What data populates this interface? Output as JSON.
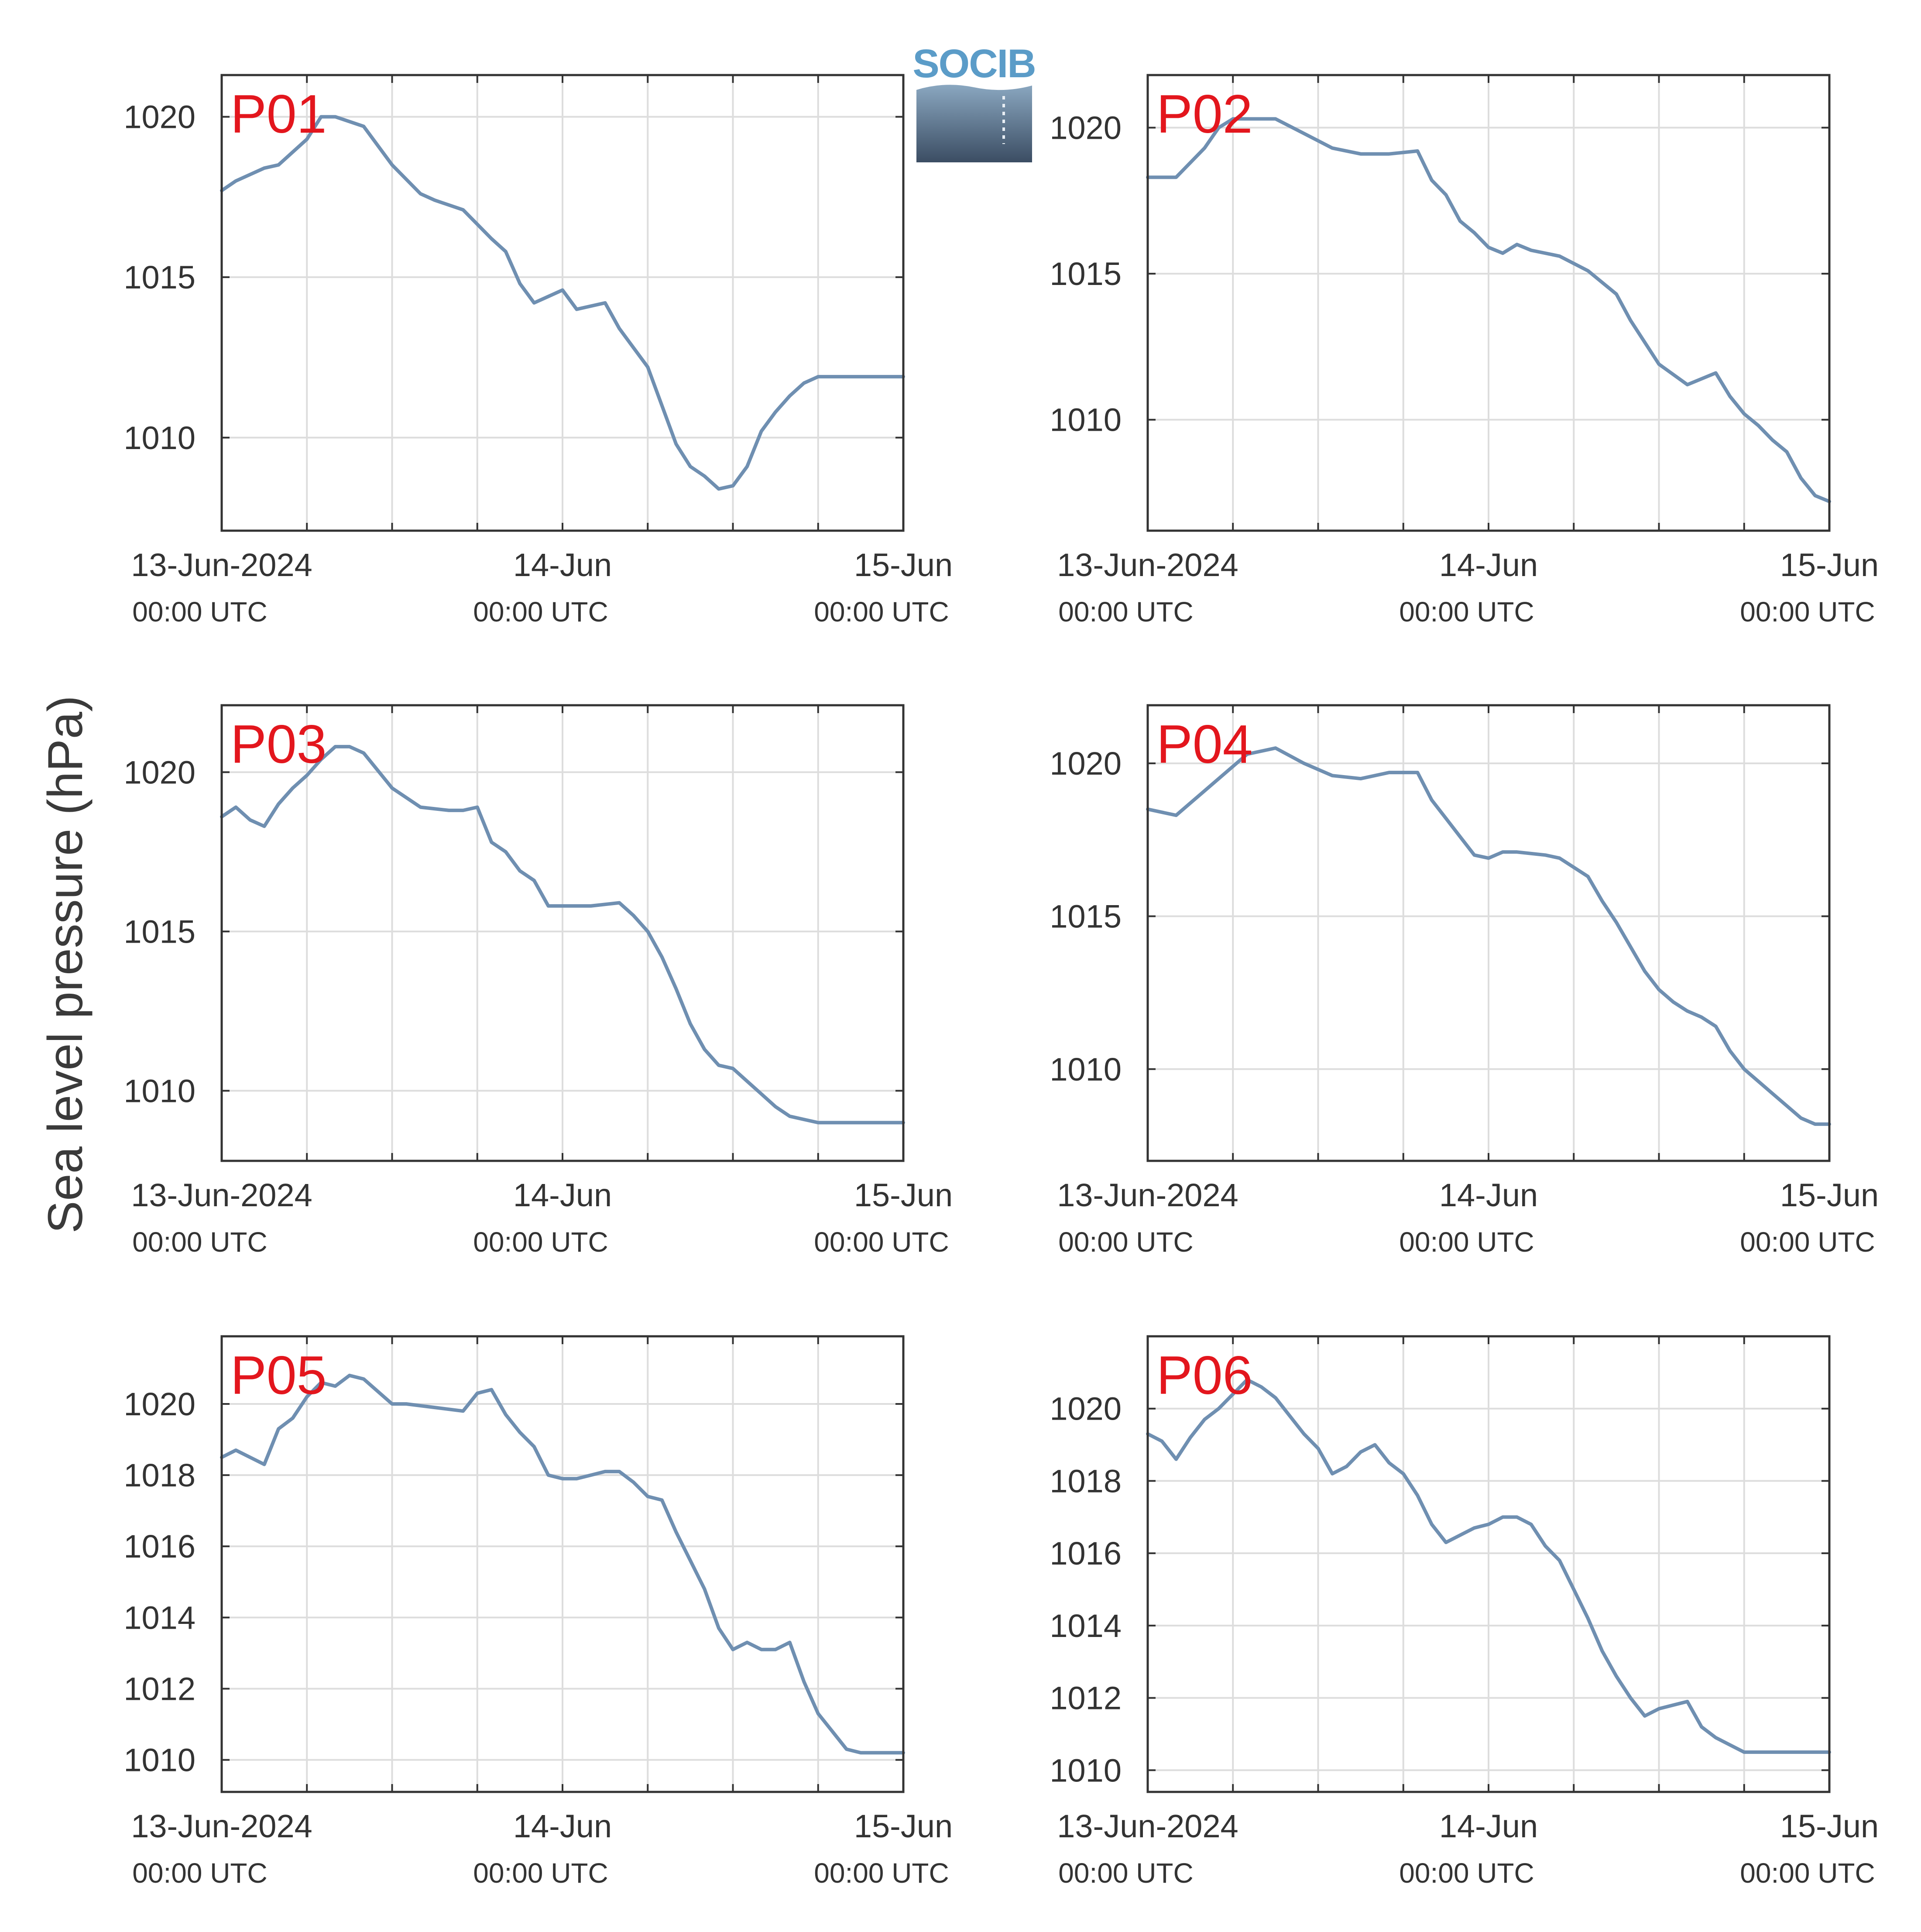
{
  "figure": {
    "ylabel": "Sea level pressure (hPa)",
    "logo_text": "SOCIB",
    "line_color": "#6f8fb1",
    "label_color": "#e3161d",
    "axis_color": "#333333",
    "grid_color": "#dddddd"
  },
  "chart_data": [
    {
      "type": "line",
      "panel_label": "P01",
      "ylim": [
        1007.1,
        1021.3
      ],
      "yticks": [
        1010,
        1015,
        1020
      ],
      "xlim": [
        "2024-06-13 00:00",
        "2024-06-15 00:00"
      ],
      "xticks": [
        {
          "main": "13-Jun-2024",
          "sub": "00:00 UTC"
        },
        {
          "main": "14-Jun",
          "sub": "00:00 UTC"
        },
        {
          "main": "15-Jun",
          "sub": "00:00 UTC"
        }
      ],
      "grid": true,
      "x": [
        "2024-06-13 00:00",
        "2024-06-13 01:00",
        "2024-06-13 02:00",
        "2024-06-13 03:00",
        "2024-06-13 04:00",
        "2024-06-13 06:00",
        "2024-06-13 07:00",
        "2024-06-13 08:00",
        "2024-06-13 10:00",
        "2024-06-13 12:00",
        "2024-06-13 14:00",
        "2024-06-13 15:00",
        "2024-06-13 17:00",
        "2024-06-13 19:00",
        "2024-06-13 20:00",
        "2024-06-13 21:00",
        "2024-06-13 22:00",
        "2024-06-13 23:00",
        "2024-06-14 00:00",
        "2024-06-14 01:00",
        "2024-06-14 03:00",
        "2024-06-14 04:00",
        "2024-06-14 05:00",
        "2024-06-14 06:00",
        "2024-06-14 07:00",
        "2024-06-14 08:00",
        "2024-06-14 09:00",
        "2024-06-14 10:00",
        "2024-06-14 11:00",
        "2024-06-14 12:00",
        "2024-06-14 13:00",
        "2024-06-14 14:00",
        "2024-06-14 15:00",
        "2024-06-14 16:00",
        "2024-06-14 17:00",
        "2024-06-14 18:00",
        "2024-06-14 19:00",
        "2024-06-14 20:00",
        "2024-06-14 21:00",
        "2024-06-14 22:00",
        "2024-06-14 23:00",
        "2024-06-15 00:00"
      ],
      "values": [
        1017.7,
        1018.0,
        1018.2,
        1018.4,
        1018.5,
        1019.3,
        1020.0,
        1020.0,
        1019.7,
        1018.5,
        1017.6,
        1017.4,
        1017.1,
        1016.2,
        1015.8,
        1014.8,
        1014.2,
        1014.4,
        1014.6,
        1014.0,
        1014.2,
        1013.4,
        1012.8,
        1012.2,
        1011.0,
        1009.8,
        1009.1,
        1008.8,
        1008.4,
        1008.5,
        1009.1,
        1010.2,
        1010.8,
        1011.3,
        1011.7,
        1011.9,
        1011.9,
        1011.9,
        1011.9,
        1011.9,
        1011.9,
        1011.9
      ]
    },
    {
      "type": "line",
      "panel_label": "P02",
      "ylim": [
        1006.2,
        1021.8
      ],
      "yticks": [
        1010,
        1015,
        1020
      ],
      "xlim": [
        "2024-06-13 00:00",
        "2024-06-15 00:00"
      ],
      "xticks": [
        {
          "main": "13-Jun-2024",
          "sub": "00:00 UTC"
        },
        {
          "main": "14-Jun",
          "sub": "00:00 UTC"
        },
        {
          "main": "15-Jun",
          "sub": "00:00 UTC"
        }
      ],
      "grid": true,
      "x": [
        "2024-06-13 00:00",
        "2024-06-13 02:00",
        "2024-06-13 03:00",
        "2024-06-13 04:00",
        "2024-06-13 05:00",
        "2024-06-13 06:00",
        "2024-06-13 07:00",
        "2024-06-13 09:00",
        "2024-06-13 11:00",
        "2024-06-13 13:00",
        "2024-06-13 15:00",
        "2024-06-13 17:00",
        "2024-06-13 19:00",
        "2024-06-13 20:00",
        "2024-06-13 21:00",
        "2024-06-13 22:00",
        "2024-06-13 23:00",
        "2024-06-14 00:00",
        "2024-06-14 01:00",
        "2024-06-14 02:00",
        "2024-06-14 03:00",
        "2024-06-14 05:00",
        "2024-06-14 07:00",
        "2024-06-14 09:00",
        "2024-06-14 10:00",
        "2024-06-14 12:00",
        "2024-06-14 14:00",
        "2024-06-14 16:00",
        "2024-06-14 17:00",
        "2024-06-14 18:00",
        "2024-06-14 19:00",
        "2024-06-14 20:00",
        "2024-06-14 21:00",
        "2024-06-14 22:00",
        "2024-06-14 23:00",
        "2024-06-15 00:00"
      ],
      "values": [
        1018.3,
        1018.3,
        1018.8,
        1019.3,
        1020.0,
        1020.3,
        1020.3,
        1020.3,
        1019.8,
        1019.3,
        1019.1,
        1019.1,
        1019.2,
        1018.2,
        1017.7,
        1016.8,
        1016.4,
        1015.9,
        1015.7,
        1016.0,
        1015.8,
        1015.6,
        1015.1,
        1014.3,
        1013.4,
        1011.9,
        1011.2,
        1011.6,
        1010.8,
        1010.2,
        1009.8,
        1009.3,
        1008.9,
        1008.0,
        1007.4,
        1007.2
      ]
    },
    {
      "type": "line",
      "panel_label": "P03",
      "ylim": [
        1007.8,
        1022.1
      ],
      "yticks": [
        1010,
        1015,
        1020
      ],
      "xlim": [
        "2024-06-13 00:00",
        "2024-06-15 00:00"
      ],
      "xticks": [
        {
          "main": "13-Jun-2024",
          "sub": "00:00 UTC"
        },
        {
          "main": "14-Jun",
          "sub": "00:00 UTC"
        },
        {
          "main": "15-Jun",
          "sub": "00:00 UTC"
        }
      ],
      "grid": true,
      "x": [
        "2024-06-13 00:00",
        "2024-06-13 01:00",
        "2024-06-13 02:00",
        "2024-06-13 03:00",
        "2024-06-13 04:00",
        "2024-06-13 05:00",
        "2024-06-13 06:00",
        "2024-06-13 07:00",
        "2024-06-13 08:00",
        "2024-06-13 09:00",
        "2024-06-13 10:00",
        "2024-06-13 12:00",
        "2024-06-13 14:00",
        "2024-06-13 16:00",
        "2024-06-13 17:00",
        "2024-06-13 18:00",
        "2024-06-13 19:00",
        "2024-06-13 20:00",
        "2024-06-13 21:00",
        "2024-06-13 22:00",
        "2024-06-13 23:00",
        "2024-06-14 00:00",
        "2024-06-14 02:00",
        "2024-06-14 04:00",
        "2024-06-14 05:00",
        "2024-06-14 06:00",
        "2024-06-14 07:00",
        "2024-06-14 08:00",
        "2024-06-14 09:00",
        "2024-06-14 10:00",
        "2024-06-14 11:00",
        "2024-06-14 12:00",
        "2024-06-14 13:00",
        "2024-06-14 14:00",
        "2024-06-14 15:00",
        "2024-06-14 16:00",
        "2024-06-14 17:00",
        "2024-06-14 18:00",
        "2024-06-14 19:00",
        "2024-06-14 20:00",
        "2024-06-14 21:00",
        "2024-06-14 22:00",
        "2024-06-14 23:00",
        "2024-06-15 00:00"
      ],
      "values": [
        1018.6,
        1018.9,
        1018.5,
        1018.3,
        1019.0,
        1019.5,
        1019.9,
        1020.4,
        1020.8,
        1020.8,
        1020.6,
        1019.5,
        1018.9,
        1018.8,
        1018.8,
        1018.9,
        1017.8,
        1017.5,
        1016.9,
        1016.6,
        1015.8,
        1015.8,
        1015.8,
        1015.9,
        1015.5,
        1015.0,
        1014.2,
        1013.2,
        1012.1,
        1011.3,
        1010.8,
        1010.7,
        1010.3,
        1009.9,
        1009.5,
        1009.2,
        1009.1,
        1009.0,
        1009.0,
        1009.0,
        1009.0,
        1009.0,
        1009.0,
        1009.0
      ]
    },
    {
      "type": "line",
      "panel_label": "P04",
      "ylim": [
        1007.0,
        1021.9
      ],
      "yticks": [
        1010,
        1015,
        1020
      ],
      "xlim": [
        "2024-06-13 00:00",
        "2024-06-15 00:00"
      ],
      "xticks": [
        {
          "main": "13-Jun-2024",
          "sub": "00:00 UTC"
        },
        {
          "main": "14-Jun",
          "sub": "00:00 UTC"
        },
        {
          "main": "15-Jun",
          "sub": "00:00 UTC"
        }
      ],
      "grid": true,
      "x": [
        "2024-06-13 00:00",
        "2024-06-13 01:00",
        "2024-06-13 02:00",
        "2024-06-13 03:00",
        "2024-06-13 04:00",
        "2024-06-13 05:00",
        "2024-06-13 06:00",
        "2024-06-13 07:00",
        "2024-06-13 09:00",
        "2024-06-13 11:00",
        "2024-06-13 13:00",
        "2024-06-13 15:00",
        "2024-06-13 17:00",
        "2024-06-13 19:00",
        "2024-06-13 20:00",
        "2024-06-13 21:00",
        "2024-06-13 22:00",
        "2024-06-13 23:00",
        "2024-06-14 00:00",
        "2024-06-14 01:00",
        "2024-06-14 02:00",
        "2024-06-14 04:00",
        "2024-06-14 05:00",
        "2024-06-14 06:00",
        "2024-06-14 07:00",
        "2024-06-14 08:00",
        "2024-06-14 09:00",
        "2024-06-14 10:00",
        "2024-06-14 11:00",
        "2024-06-14 12:00",
        "2024-06-14 13:00",
        "2024-06-14 14:00",
        "2024-06-14 15:00",
        "2024-06-14 16:00",
        "2024-06-14 17:00",
        "2024-06-14 18:00",
        "2024-06-14 19:00",
        "2024-06-14 20:00",
        "2024-06-14 21:00",
        "2024-06-14 22:00",
        "2024-06-14 23:00",
        "2024-06-15 00:00"
      ],
      "values": [
        1018.5,
        1018.4,
        1018.3,
        1018.7,
        1019.1,
        1019.5,
        1019.9,
        1020.3,
        1020.5,
        1020.0,
        1019.6,
        1019.5,
        1019.7,
        1019.7,
        1018.8,
        1018.2,
        1017.6,
        1017.0,
        1016.9,
        1017.1,
        1017.1,
        1017.0,
        1016.9,
        1016.6,
        1016.3,
        1015.5,
        1014.8,
        1014.0,
        1013.2,
        1012.6,
        1012.2,
        1011.9,
        1011.7,
        1011.4,
        1010.6,
        1010.0,
        1009.6,
        1009.2,
        1008.8,
        1008.4,
        1008.2,
        1008.2
      ]
    },
    {
      "type": "line",
      "panel_label": "P05",
      "ylim": [
        1009.1,
        1021.9
      ],
      "yticks": [
        1010,
        1012,
        1014,
        1016,
        1018,
        1020
      ],
      "xlim": [
        "2024-06-13 00:00",
        "2024-06-15 00:00"
      ],
      "xticks": [
        {
          "main": "13-Jun-2024",
          "sub": "00:00 UTC"
        },
        {
          "main": "14-Jun",
          "sub": "00:00 UTC"
        },
        {
          "main": "15-Jun",
          "sub": "00:00 UTC"
        }
      ],
      "grid": true,
      "x": [
        "2024-06-13 00:00",
        "2024-06-13 01:00",
        "2024-06-13 02:00",
        "2024-06-13 03:00",
        "2024-06-13 04:00",
        "2024-06-13 05:00",
        "2024-06-13 06:00",
        "2024-06-13 07:00",
        "2024-06-13 08:00",
        "2024-06-13 09:00",
        "2024-06-13 10:00",
        "2024-06-13 12:00",
        "2024-06-13 13:00",
        "2024-06-13 15:00",
        "2024-06-13 17:00",
        "2024-06-13 18:00",
        "2024-06-13 19:00",
        "2024-06-13 20:00",
        "2024-06-13 21:00",
        "2024-06-13 22:00",
        "2024-06-13 23:00",
        "2024-06-14 00:00",
        "2024-06-14 01:00",
        "2024-06-14 02:00",
        "2024-06-14 03:00",
        "2024-06-14 04:00",
        "2024-06-14 05:00",
        "2024-06-14 06:00",
        "2024-06-14 07:00",
        "2024-06-14 08:00",
        "2024-06-14 09:00",
        "2024-06-14 10:00",
        "2024-06-14 11:00",
        "2024-06-14 12:00",
        "2024-06-14 13:00",
        "2024-06-14 14:00",
        "2024-06-14 15:00",
        "2024-06-14 16:00",
        "2024-06-14 17:00",
        "2024-06-14 18:00",
        "2024-06-14 19:00",
        "2024-06-14 20:00",
        "2024-06-14 21:00",
        "2024-06-14 22:00",
        "2024-06-14 23:00",
        "2024-06-15 00:00"
      ],
      "values": [
        1018.5,
        1018.7,
        1018.5,
        1018.3,
        1019.3,
        1019.6,
        1020.2,
        1020.6,
        1020.5,
        1020.8,
        1020.7,
        1020.0,
        1020.0,
        1019.9,
        1019.8,
        1020.3,
        1020.4,
        1019.7,
        1019.2,
        1018.8,
        1018.0,
        1017.9,
        1017.9,
        1018.0,
        1018.1,
        1018.1,
        1017.8,
        1017.4,
        1017.3,
        1016.4,
        1015.6,
        1014.8,
        1013.7,
        1013.1,
        1013.3,
        1013.1,
        1013.1,
        1013.3,
        1012.2,
        1011.3,
        1010.8,
        1010.3,
        1010.2,
        1010.2,
        1010.2,
        1010.2
      ]
    },
    {
      "type": "line",
      "panel_label": "P06",
      "ylim": [
        1009.4,
        1022.0
      ],
      "yticks": [
        1010,
        1012,
        1014,
        1016,
        1018,
        1020
      ],
      "xlim": [
        "2024-06-13 00:00",
        "2024-06-15 00:00"
      ],
      "xticks": [
        {
          "main": "13-Jun-2024",
          "sub": "00:00 UTC"
        },
        {
          "main": "14-Jun",
          "sub": "00:00 UTC"
        },
        {
          "main": "15-Jun",
          "sub": "00:00 UTC"
        }
      ],
      "grid": true,
      "x": [
        "2024-06-13 00:00",
        "2024-06-13 01:00",
        "2024-06-13 02:00",
        "2024-06-13 03:00",
        "2024-06-13 04:00",
        "2024-06-13 05:00",
        "2024-06-13 06:00",
        "2024-06-13 07:00",
        "2024-06-13 08:00",
        "2024-06-13 09:00",
        "2024-06-13 10:00",
        "2024-06-13 11:00",
        "2024-06-13 12:00",
        "2024-06-13 13:00",
        "2024-06-13 14:00",
        "2024-06-13 15:00",
        "2024-06-13 16:00",
        "2024-06-13 17:00",
        "2024-06-13 18:00",
        "2024-06-13 19:00",
        "2024-06-13 20:00",
        "2024-06-13 21:00",
        "2024-06-13 22:00",
        "2024-06-13 23:00",
        "2024-06-14 00:00",
        "2024-06-14 01:00",
        "2024-06-14 02:00",
        "2024-06-14 03:00",
        "2024-06-14 04:00",
        "2024-06-14 05:00",
        "2024-06-14 06:00",
        "2024-06-14 07:00",
        "2024-06-14 08:00",
        "2024-06-14 09:00",
        "2024-06-14 10:00",
        "2024-06-14 11:00",
        "2024-06-14 12:00",
        "2024-06-14 13:00",
        "2024-06-14 14:00",
        "2024-06-14 15:00",
        "2024-06-14 16:00",
        "2024-06-14 17:00",
        "2024-06-14 18:00",
        "2024-06-14 19:00",
        "2024-06-14 20:00",
        "2024-06-14 21:00",
        "2024-06-14 22:00",
        "2024-06-14 23:00",
        "2024-06-15 00:00"
      ],
      "values": [
        1019.3,
        1019.1,
        1018.6,
        1019.2,
        1019.7,
        1020.0,
        1020.4,
        1020.8,
        1020.6,
        1020.3,
        1019.8,
        1019.3,
        1018.9,
        1018.2,
        1018.4,
        1018.8,
        1019.0,
        1018.5,
        1018.2,
        1017.6,
        1016.8,
        1016.3,
        1016.5,
        1016.7,
        1016.8,
        1017.0,
        1017.0,
        1016.8,
        1016.2,
        1015.8,
        1015.0,
        1014.2,
        1013.3,
        1012.6,
        1012.0,
        1011.5,
        1011.7,
        1011.8,
        1011.9,
        1011.2,
        1010.9,
        1010.7,
        1010.5,
        1010.5,
        1010.5,
        1010.5,
        1010.5,
        1010.5,
        1010.5
      ]
    }
  ]
}
